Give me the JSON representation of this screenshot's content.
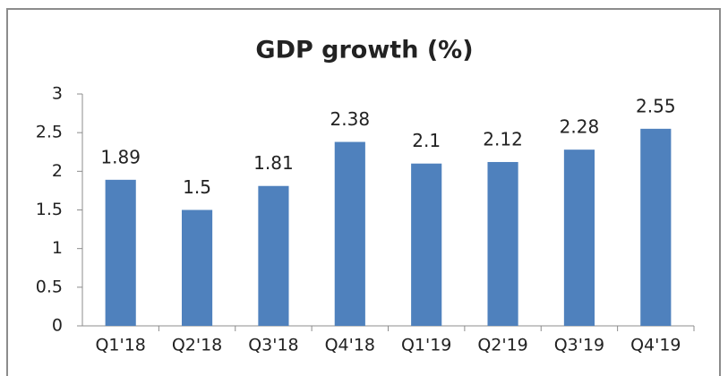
{
  "chart_data": {
    "type": "bar",
    "title": "GDP growth (%)",
    "categories": [
      "Q1'18",
      "Q2'18",
      "Q3'18",
      "Q4'18",
      "Q1'19",
      "Q2'19",
      "Q3'19",
      "Q4'19"
    ],
    "values": [
      1.89,
      1.5,
      1.81,
      2.38,
      2.1,
      2.12,
      2.28,
      2.55
    ],
    "color": "#4f81bd",
    "ylim": [
      0,
      3
    ],
    "yticks": [
      0,
      0.5,
      1,
      1.5,
      2,
      2.5,
      3
    ],
    "grid": false
  }
}
